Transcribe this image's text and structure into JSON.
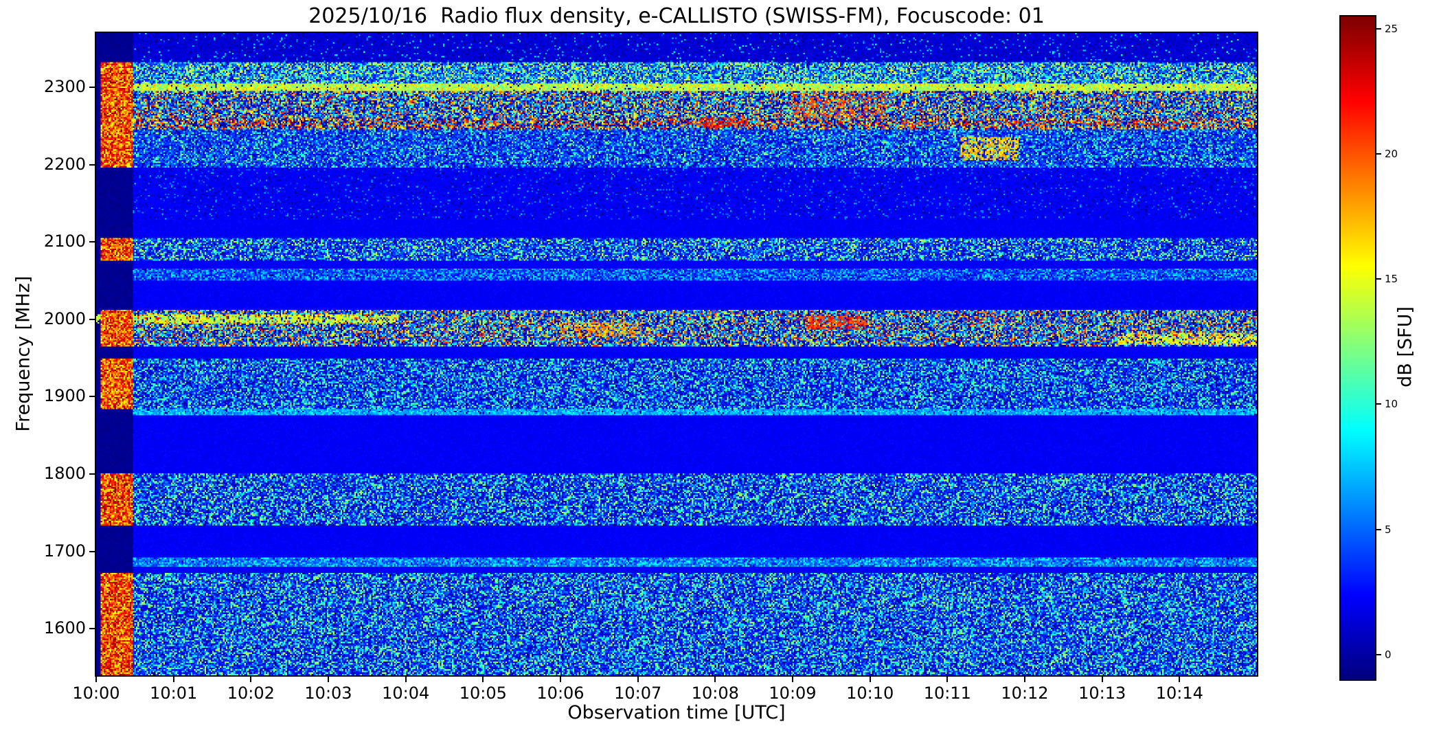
{
  "chart_data": {
    "type": "heatmap",
    "title": "2025/10/16  Radio flux density, e-CALLISTO (SWISS-FM), Focuscode: 01",
    "xlabel": "Observation time [UTC]",
    "ylabel": "Frequency [MHz]",
    "colorbar_label": "dB [SFU]",
    "colormap": "jet",
    "x_ticks": [
      "10:00",
      "10:01",
      "10:02",
      "10:03",
      "10:04",
      "10:05",
      "10:06",
      "10:07",
      "10:08",
      "10:09",
      "10:10",
      "10:11",
      "10:12",
      "10:13",
      "10:14"
    ],
    "x_span_minutes": 15,
    "y_ticks": [
      2300,
      2200,
      2100,
      2000,
      1900,
      1800,
      1700,
      1600
    ],
    "f_range": [
      1540,
      2370
    ],
    "v_range": [
      -1,
      25.5
    ],
    "colorbar_ticks": [
      25,
      20,
      15,
      10,
      5,
      0
    ],
    "seed": 1337,
    "background": {
      "base": 2.1,
      "noise": 0.5
    },
    "startup_column": {
      "x0": 0.004,
      "x1": 0.032,
      "v": [
        15,
        25.5
      ]
    },
    "left_dark_strip": {
      "v": -0.9
    },
    "bands": [
      {
        "f": [
          2332,
          2370
        ],
        "base": 1.3,
        "noise": 0.8,
        "sp": 0.05,
        "spv": [
          4,
          9
        ],
        "dark": 0.15,
        "su": false
      },
      {
        "f": [
          2304,
          2332
        ],
        "base": 4.0,
        "noise": 2.2,
        "sp": 0.5,
        "spv": [
          6,
          16
        ],
        "dark": 0.1,
        "su": true
      },
      {
        "f": [
          2294,
          2304
        ],
        "base": 13.0,
        "noise": 2.5,
        "sp": 0.35,
        "spv": [
          14,
          18
        ],
        "dark": 0.05,
        "su": true
      },
      {
        "f": [
          2260,
          2294
        ],
        "base": 4.5,
        "noise": 3.0,
        "sp": 0.5,
        "spv": [
          5,
          22
        ],
        "dark": 0.28,
        "su": true
      },
      {
        "f": [
          2246,
          2260
        ],
        "base": 7.0,
        "noise": 4.0,
        "sp": 0.45,
        "spv": [
          14,
          24
        ],
        "dark": 0.3,
        "su": true
      },
      {
        "f": [
          2196,
          2246
        ],
        "base": 3.5,
        "noise": 2.2,
        "sp": 0.33,
        "spv": [
          4,
          13
        ],
        "dark": 0.18,
        "su": true
      },
      {
        "f": [
          2128,
          2196
        ],
        "base": 2.1,
        "noise": 0.5,
        "sp": 0.06,
        "spv": [
          3,
          7
        ],
        "dark": 0.1,
        "su": false
      },
      {
        "f": [
          2076,
          2106
        ],
        "base": 3.2,
        "noise": 2.0,
        "sp": 0.42,
        "spv": [
          4,
          15
        ],
        "dark": 0.15,
        "su": true
      },
      {
        "f": [
          2050,
          2066
        ],
        "base": 3.4,
        "noise": 1.6,
        "sp": 0.38,
        "spv": [
          5,
          9
        ],
        "dark": 0.08,
        "su": false
      },
      {
        "f": [
          1964,
          2012
        ],
        "base": 4.5,
        "noise": 3.0,
        "sp": 0.48,
        "spv": [
          5,
          22
        ],
        "dark": 0.28,
        "su": true
      },
      {
        "f": [
          1884,
          1950
        ],
        "base": 3.0,
        "noise": 2.0,
        "sp": 0.42,
        "spv": [
          4,
          13
        ],
        "dark": 0.2,
        "su": true
      },
      {
        "f": [
          1876,
          1884
        ],
        "base": 6.0,
        "noise": 2.0,
        "sp": 0.45,
        "spv": [
          6,
          10
        ],
        "dark": 0.05,
        "su": false
      },
      {
        "f": [
          1734,
          1800
        ],
        "base": 3.0,
        "noise": 2.0,
        "sp": 0.42,
        "spv": [
          4,
          14
        ],
        "dark": 0.2,
        "su": true
      },
      {
        "f": [
          1680,
          1692
        ],
        "base": 4.5,
        "noise": 2.2,
        "sp": 0.45,
        "spv": [
          5,
          10
        ],
        "dark": 0.05,
        "su": false
      },
      {
        "f": [
          1540,
          1672
        ],
        "base": 3.0,
        "noise": 2.0,
        "sp": 0.44,
        "spv": [
          4,
          14
        ],
        "dark": 0.18,
        "su": true
      }
    ],
    "blobs": [
      {
        "x": [
          0.0,
          0.26
        ],
        "f": [
          1994,
          2006
        ],
        "v": 14,
        "p": 0.7
      },
      {
        "x": [
          0.4,
          0.47
        ],
        "f": [
          1976,
          1996
        ],
        "v": 18,
        "p": 0.5
      },
      {
        "x": [
          0.61,
          0.665
        ],
        "f": [
          1986,
          2004
        ],
        "v": 21,
        "p": 0.6
      },
      {
        "x": [
          0.88,
          1.0
        ],
        "f": [
          1966,
          1982
        ],
        "v": 15,
        "p": 0.6
      },
      {
        "x": [
          0.745,
          0.795
        ],
        "f": [
          2206,
          2236
        ],
        "v": 17,
        "p": 0.6
      },
      {
        "x": [
          0.52,
          0.56
        ],
        "f": [
          2248,
          2262
        ],
        "v": 22,
        "p": 0.5
      },
      {
        "x": [
          0.6,
          0.68
        ],
        "f": [
          2260,
          2292
        ],
        "v": 20,
        "p": 0.35
      }
    ]
  }
}
